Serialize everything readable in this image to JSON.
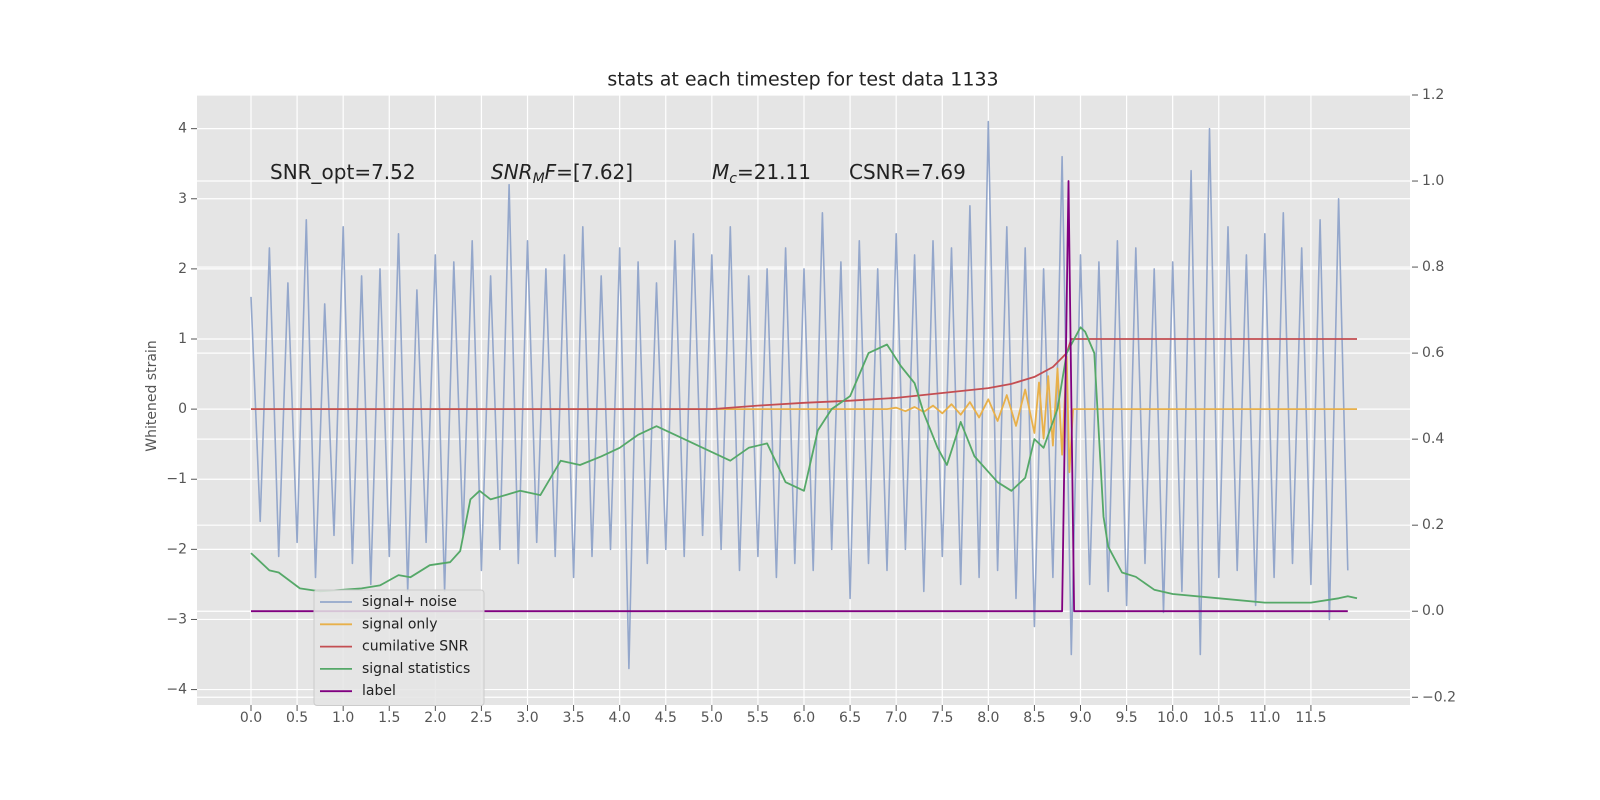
{
  "chart_data": {
    "type": "line",
    "title": "stats at each timestep for test data 1133",
    "ylabel": "Whitened strain",
    "annotations": [
      {
        "parts": [
          {
            "text": "SNR_opt=7.52"
          }
        ]
      },
      {
        "parts": [
          {
            "text": "SNR",
            "style": "italic"
          },
          {
            "text": "M",
            "style": "sub"
          },
          {
            "text": "F",
            "style": "italic"
          },
          {
            "text": "=[7.62]"
          }
        ]
      },
      {
        "parts": [
          {
            "text": "M",
            "style": "italic"
          },
          {
            "text": "c",
            "style": "sub"
          },
          {
            "text": "=21.11"
          }
        ]
      },
      {
        "parts": [
          {
            "text": "CSNR=7.69"
          }
        ]
      }
    ],
    "xlim": [
      -0.586,
      12.575
    ],
    "xticks": [
      {
        "value": 0,
        "label": "0.0"
      },
      0.5,
      {
        "value": 1,
        "label": "1.0"
      },
      1.5,
      {
        "value": 2,
        "label": "2.0"
      },
      2.5,
      {
        "value": 3,
        "label": "3.0"
      },
      3.5,
      {
        "value": 4,
        "label": "4.0"
      },
      4.5,
      {
        "value": 5,
        "label": "5.0"
      },
      5.5,
      {
        "value": 6,
        "label": "6.0"
      },
      6.5,
      {
        "value": 7,
        "label": "7.0"
      },
      7.5,
      {
        "value": 8,
        "label": "8.0"
      },
      8.5,
      {
        "value": 9,
        "label": "9.0"
      },
      9.5,
      {
        "value": 10,
        "label": "10.0"
      },
      10.5,
      {
        "value": 11,
        "label": "11.0"
      },
      11.5
    ],
    "ylim": [
      -4.22,
      4.48
    ],
    "yticks": [
      {
        "value": -4,
        "label": "−4"
      },
      {
        "value": -3,
        "label": "−3"
      },
      {
        "value": -2,
        "label": "−2"
      },
      {
        "value": -1,
        "label": "−1"
      },
      0,
      1,
      2,
      3,
      4
    ],
    "y2lim": [
      -0.218,
      1.2
    ],
    "y2ticks": [
      {
        "value": -0.2,
        "label": "−0.2"
      },
      {
        "value": 0,
        "label": "0.0"
      },
      0.2,
      0.4,
      0.6,
      0.8,
      {
        "value": 1,
        "label": "1.0"
      },
      1.2
    ],
    "grid": true,
    "legend": "lower left",
    "series": [
      {
        "name": "signal+ noise",
        "color": "#94a7cb",
        "x": [
          0,
          0.1,
          0.2,
          0.3,
          0.4,
          0.5,
          0.6,
          0.7,
          0.8,
          0.9,
          1,
          1.1,
          1.2,
          1.3,
          1.4,
          1.5,
          1.6,
          1.7,
          1.8,
          1.9,
          2,
          2.1,
          2.2,
          2.3,
          2.4,
          2.5,
          2.6,
          2.7,
          2.8,
          2.9,
          3,
          3.1,
          3.2,
          3.3,
          3.4,
          3.5,
          3.6,
          3.7,
          3.8,
          3.9,
          4,
          4.1,
          4.2,
          4.3,
          4.4,
          4.5,
          4.6,
          4.7,
          4.8,
          4.9,
          5,
          5.1,
          5.2,
          5.3,
          5.4,
          5.5,
          5.6,
          5.7,
          5.8,
          5.9,
          6,
          6.1,
          6.2,
          6.3,
          6.4,
          6.5,
          6.6,
          6.7,
          6.8,
          6.9,
          7,
          7.1,
          7.2,
          7.3,
          7.4,
          7.5,
          7.6,
          7.7,
          7.8,
          7.9,
          8,
          8.1,
          8.2,
          8.3,
          8.4,
          8.5,
          8.6,
          8.7,
          8.8,
          8.9,
          9,
          9.1,
          9.2,
          9.3,
          9.4,
          9.5,
          9.6,
          9.7,
          9.8,
          9.9,
          10,
          10.1,
          10.2,
          10.3,
          10.4,
          10.5,
          10.6,
          10.7,
          10.8,
          10.9,
          11,
          11.1,
          11.2,
          11.3,
          11.4,
          11.5,
          11.6,
          11.7,
          11.8,
          11.9
        ],
        "values": [
          1.6,
          -1.6,
          2.3,
          -2.1,
          1.8,
          -1.9,
          2.7,
          -2.4,
          1.5,
          -1.8,
          2.6,
          -2.2,
          1.9,
          -2.5,
          2.0,
          -2.1,
          2.5,
          -2.6,
          1.7,
          -1.9,
          2.2,
          -2.6,
          2.1,
          -1.8,
          2.4,
          -2.3,
          1.9,
          -2.0,
          3.2,
          -2.2,
          2.4,
          -1.9,
          2.0,
          -2.1,
          2.2,
          -2.4,
          2.6,
          -2.1,
          1.9,
          -2.0,
          2.3,
          -3.7,
          2.1,
          -2.2,
          1.8,
          -2.0,
          2.4,
          -2.1,
          2.5,
          -1.8,
          2.2,
          -2.0,
          2.6,
          -2.3,
          1.9,
          -2.1,
          2.0,
          -2.4,
          2.3,
          -2.2,
          2.0,
          -2.3,
          2.8,
          -2.0,
          2.1,
          -2.7,
          2.4,
          -2.2,
          2.0,
          -2.3,
          2.5,
          -2.0,
          2.2,
          -2.6,
          2.4,
          -2.1,
          2.3,
          -2.5,
          2.9,
          -2.4,
          4.1,
          -2.3,
          2.6,
          -2.7,
          2.3,
          -3.1,
          2.0,
          -2.4,
          3.6,
          -3.5,
          2.2,
          -2.5,
          2.1,
          -2.6,
          2.4,
          -2.8,
          2.3,
          -2.2,
          2.0,
          -2.9,
          2.1,
          -2.6,
          3.4,
          -3.5,
          4.0,
          -2.4,
          2.6,
          -2.3,
          2.2,
          -2.8,
          2.5,
          -2.4,
          2.8,
          -2.2,
          2.3,
          -2.5,
          2.7,
          -3.0,
          3.0,
          -2.3
        ]
      },
      {
        "name": "signal only",
        "color": "#e8b04a",
        "x": [
          0,
          6.9,
          7.0,
          7.1,
          7.2,
          7.3,
          7.4,
          7.5,
          7.6,
          7.7,
          7.8,
          7.9,
          8.0,
          8.1,
          8.2,
          8.3,
          8.4,
          8.5,
          8.55,
          8.6,
          8.65,
          8.7,
          8.75,
          8.8,
          8.85,
          8.88,
          8.92,
          12.0
        ],
        "values": [
          0,
          0,
          0.02,
          -0.03,
          0.03,
          -0.04,
          0.05,
          -0.06,
          0.07,
          -0.08,
          0.1,
          -0.12,
          0.14,
          -0.17,
          0.2,
          -0.24,
          0.28,
          -0.34,
          0.38,
          -0.42,
          0.47,
          -0.52,
          0.58,
          -0.65,
          0.75,
          -0.9,
          0,
          0
        ]
      },
      {
        "name": "cumilative SNR",
        "color": "#c44e52",
        "x": [
          0,
          5.0,
          5.5,
          6.0,
          6.5,
          7.0,
          7.5,
          8.0,
          8.25,
          8.5,
          8.7,
          8.85,
          8.9,
          12.0
        ],
        "values": [
          0,
          0,
          0.05,
          0.09,
          0.12,
          0.16,
          0.23,
          0.3,
          0.36,
          0.46,
          0.6,
          0.8,
          1.0,
          1.0
        ]
      },
      {
        "name": "signal statistics",
        "color": "#55a868",
        "axis": "y2",
        "x": [
          0,
          0.2,
          0.3,
          0.53,
          0.75,
          1.2,
          1.4,
          1.6,
          1.73,
          1.94,
          2.16,
          2.27,
          2.38,
          2.48,
          2.6,
          2.92,
          3.14,
          3.36,
          3.57,
          3.8,
          4.0,
          4.2,
          4.4,
          4.6,
          4.8,
          5.0,
          5.2,
          5.4,
          5.6,
          5.8,
          6.0,
          6.15,
          6.3,
          6.5,
          6.7,
          6.9,
          7.05,
          7.2,
          7.3,
          7.45,
          7.55,
          7.7,
          7.85,
          8.1,
          8.25,
          8.4,
          8.5,
          8.6,
          8.75,
          8.85,
          9.0,
          9.05,
          9.15,
          9.25,
          9.3,
          9.45,
          9.6,
          9.8,
          10.0,
          10.5,
          11.0,
          11.5,
          11.8,
          11.9,
          12.0
        ],
        "values": [
          0.135,
          0.095,
          0.09,
          0.053,
          0.046,
          0.053,
          0.06,
          0.084,
          0.079,
          0.107,
          0.114,
          0.14,
          0.26,
          0.28,
          0.26,
          0.28,
          0.27,
          0.35,
          0.34,
          0.36,
          0.38,
          0.41,
          0.43,
          0.41,
          0.39,
          0.37,
          0.35,
          0.38,
          0.39,
          0.3,
          0.28,
          0.42,
          0.47,
          0.5,
          0.6,
          0.62,
          0.57,
          0.53,
          0.46,
          0.38,
          0.34,
          0.44,
          0.36,
          0.3,
          0.28,
          0.31,
          0.4,
          0.38,
          0.47,
          0.6,
          0.66,
          0.65,
          0.6,
          0.22,
          0.15,
          0.09,
          0.08,
          0.05,
          0.04,
          0.03,
          0.02,
          0.02,
          0.03,
          0.035,
          0.03
        ]
      },
      {
        "name": "label",
        "color": "#800080",
        "axis": "y2",
        "x": [
          0,
          8.8,
          8.87,
          8.93,
          11.9
        ],
        "values": [
          0,
          0,
          1.0,
          0,
          0
        ]
      }
    ]
  }
}
